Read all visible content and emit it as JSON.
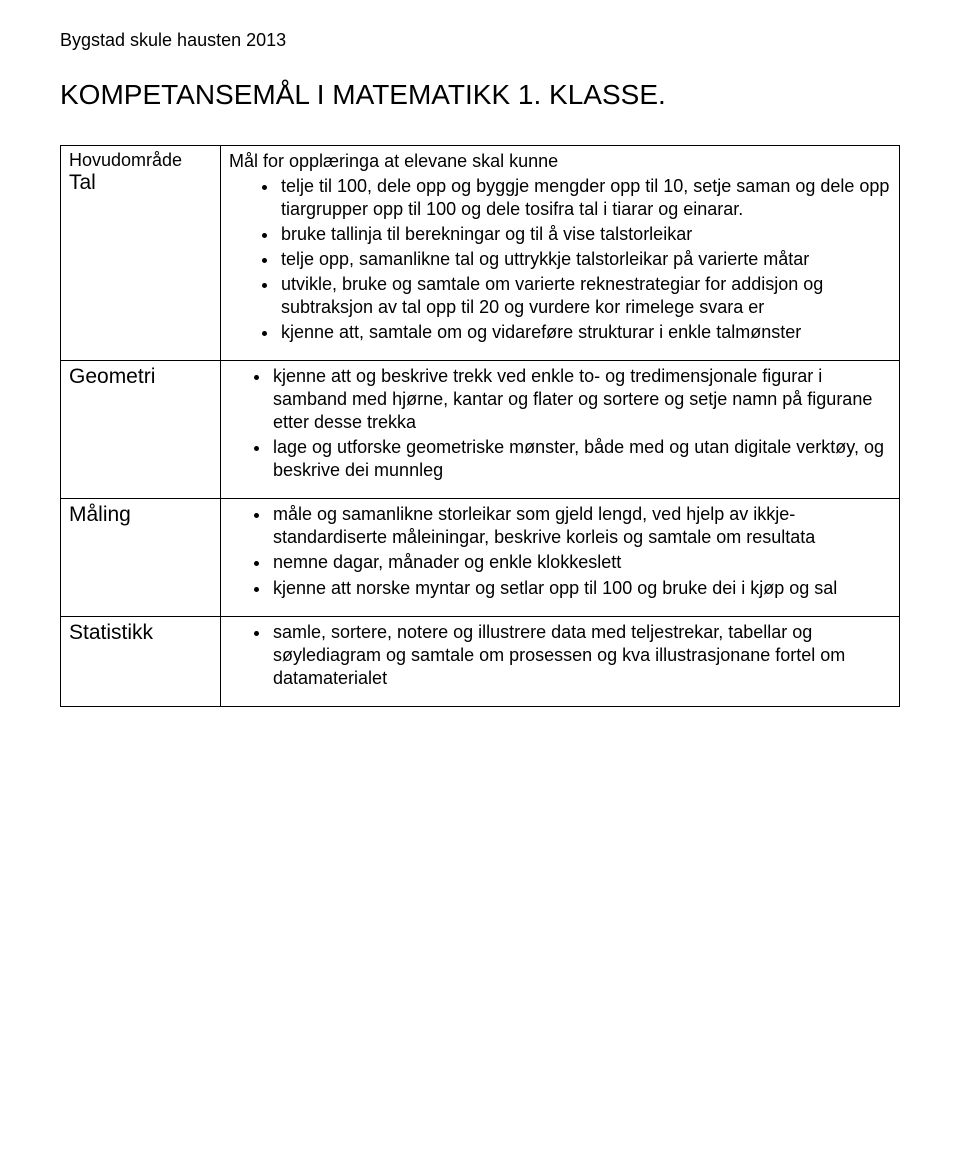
{
  "header": "Bygstad skule hausten 2013",
  "title": "KOMPETANSEMÅL I MATEMATIKK 1. KLASSE.",
  "area_label": "Hovudområde",
  "goal_intro": "Mål for opplæringa at elevane skal kunne",
  "rows": [
    {
      "area": "Tal",
      "show_label": true,
      "goals": [
        "telje til 100, dele opp og byggje mengder opp til 10, setje saman og dele opp tiargrupper opp til 100 og dele tosifra tal i tiarar og einarar.",
        "bruke tallinja til berekningar og til å vise talstorleikar",
        "telje opp, samanlikne tal og uttrykkje talstorleikar på varierte måtar",
        "utvikle, bruke og samtale om varierte reknestrategiar for addisjon og subtraksjon av tal opp til 20 og vurdere kor rimelege svara er",
        "kjenne att, samtale om og vidareføre strukturar i enkle talmønster"
      ]
    },
    {
      "area": "Geometri",
      "show_label": false,
      "goals": [
        "kjenne att og beskrive trekk ved enkle to- og tredimensjonale figurar i samband med hjørne, kantar og flater og sortere og setje namn på figurane etter desse trekka",
        "lage og utforske geometriske mønster, både med og utan digitale verktøy, og beskrive dei munnleg"
      ]
    },
    {
      "area": "Måling",
      "show_label": false,
      "goals": [
        "måle og samanlikne storleikar som gjeld lengd, ved hjelp av ikkje-standardiserte måleiningar, beskrive korleis og samtale om resultata",
        "nemne dagar, månader og enkle klokkeslett",
        "kjenne att norske myntar og setlar opp til 100 og bruke dei i kjøp og sal"
      ]
    },
    {
      "area": "Statistikk",
      "show_label": false,
      "goals": [
        "samle, sortere, notere og illustrere data med teljestrekar, tabellar og søylediagram og samtale om prosessen og kva illustrasjonane fortel om datamaterialet"
      ]
    }
  ]
}
